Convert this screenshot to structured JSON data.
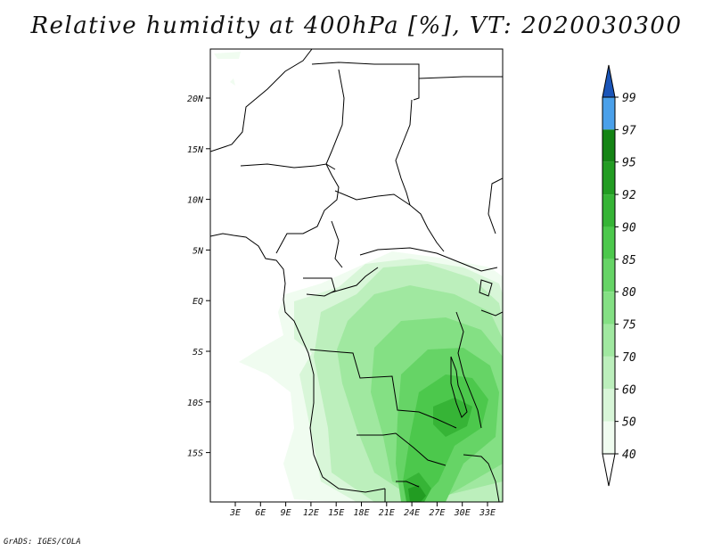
{
  "title": "Relative humidity at 400hPa [%], VT: 2020030300",
  "credit": "GrADS: IGES/COLA",
  "map": {
    "lat_ticks": [
      "20N",
      "15N",
      "10N",
      "5N",
      "EQ",
      "5S",
      "10S",
      "15S"
    ],
    "lon_ticks": [
      "3E",
      "6E",
      "9E",
      "12E",
      "15E",
      "18E",
      "21E",
      "24E",
      "27E",
      "30E",
      "33E"
    ]
  },
  "colorbar": {
    "labels": [
      "99",
      "97",
      "95",
      "92",
      "90",
      "85",
      "80",
      "75",
      "70",
      "60",
      "50",
      "40"
    ],
    "colors": {
      "40": "#f0fcf0",
      "50": "#d8f6d8",
      "60": "#bcefbc",
      "70": "#a0e8a0",
      "75": "#84e084",
      "80": "#66d466",
      "85": "#4cc84c",
      "90": "#36b436",
      "92": "#229c22",
      "95": "#148414",
      "97": "#4aa0ea",
      "99": "#2a72d4",
      "top": "#1b55b8"
    }
  }
}
